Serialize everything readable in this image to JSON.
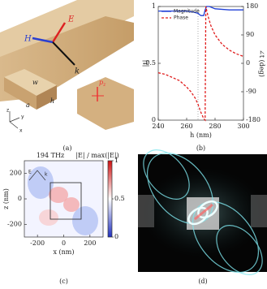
{
  "chart_data": [
    {
      "type": "line",
      "caption": "(b)",
      "xlabel": "h (nm)",
      "ylabel": "|t|",
      "y2label": "∠t (deg)",
      "xlim": [
        240,
        300
      ],
      "xticks": [
        240,
        260,
        280,
        300
      ],
      "ylim": [
        0,
        1
      ],
      "yticks": [
        0,
        0.5,
        1
      ],
      "y2lim": [
        -180,
        180
      ],
      "y2ticks": [
        -180,
        -90,
        0,
        90,
        180
      ],
      "vline": 268,
      "legend": "upper-left",
      "series": [
        {
          "name": "Magnitude",
          "color": "#1f3fd6",
          "style": "solid",
          "x": [
            240,
            250,
            260,
            265,
            268,
            270,
            272,
            273,
            274,
            276,
            280,
            290,
            300
          ],
          "values": [
            0.96,
            0.96,
            0.96,
            0.95,
            0.94,
            0.92,
            0.92,
            0.97,
            1.0,
            1.0,
            0.98,
            0.97,
            0.97
          ]
        },
        {
          "name": "Phase",
          "color": "#e01b1b",
          "style": "dashed",
          "axis": "y2",
          "x": [
            240,
            245,
            250,
            255,
            260,
            263,
            266,
            268,
            270,
            271,
            272,
            273,
            273.5,
            275,
            277,
            280,
            285,
            290,
            295,
            300
          ],
          "values": [
            -30,
            -35,
            -45,
            -55,
            -75,
            -90,
            -110,
            -130,
            -155,
            -165,
            -175,
            -180,
            180,
            150,
            120,
            90,
            60,
            42,
            30,
            22
          ]
        }
      ]
    },
    {
      "type": "heatmap",
      "caption": "(c)",
      "title": "194 THz",
      "xlabel": "x (nm)",
      "ylabel": "z (nm)",
      "xlim": [
        -300,
        300
      ],
      "xticks": [
        -200,
        0,
        200
      ],
      "ylim": [
        -300,
        300
      ],
      "yticks": [
        -200,
        0,
        200
      ],
      "colorbar": {
        "label": "|E| / max(|E|)",
        "lim": [
          0,
          1
        ],
        "ticks": [
          0,
          0.5,
          1
        ]
      },
      "inset": {
        "e": "E",
        "k": "k"
      }
    }
  ],
  "figure_a": {
    "caption": "(a)",
    "e": "E",
    "h_field": "H",
    "k": "k",
    "w": "w",
    "a": "a",
    "h": "h",
    "p": "p",
    "p_sub": "z",
    "axes": [
      "z",
      "y",
      "x"
    ]
  },
  "figure_d": {
    "caption": "(d)"
  }
}
